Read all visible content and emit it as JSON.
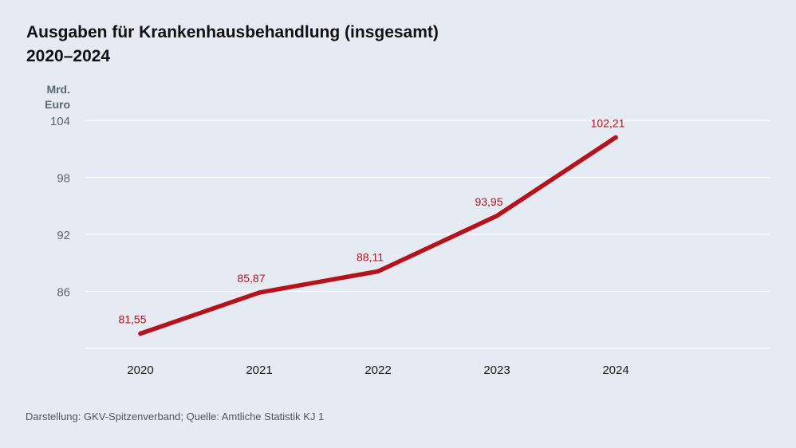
{
  "title": {
    "line1": "Ausgaben für Krankenhausbehandlung (insgesamt)",
    "line2": "2020–2024"
  },
  "axis": {
    "y_unit_line1": "Mrd.",
    "y_unit_line2": "Euro"
  },
  "footer": "Darstellung: GKV-Spitzenverband; Quelle: Amtliche Statistik KJ 1",
  "colors": {
    "line": "#b5121b",
    "grid": "#ffffff",
    "tick": "#5c6770",
    "background": "#e6eaf2"
  },
  "chart_data": {
    "type": "line",
    "title": "Ausgaben für Krankenhausbehandlung (insgesamt) 2020–2024",
    "ylabel": "Mrd. Euro",
    "x": [
      "2020",
      "2021",
      "2022",
      "2023",
      "2024"
    ],
    "series": [
      {
        "values": [
          81.55,
          85.87,
          88.11,
          93.95,
          102.21
        ],
        "labels": [
          "81,55",
          "85,87",
          "88,11",
          "93,95",
          "102,21"
        ]
      }
    ],
    "yticks": [
      "86",
      "92",
      "98",
      "104"
    ],
    "ylim": [
      80,
      104
    ],
    "grid": true
  }
}
